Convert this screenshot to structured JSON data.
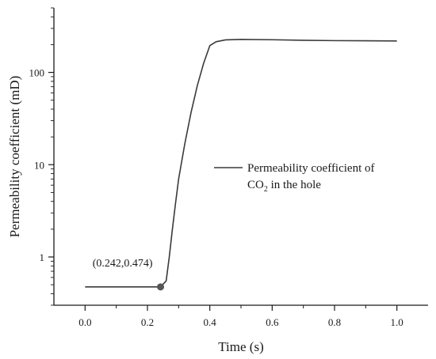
{
  "chart_data": {
    "type": "line",
    "xlabel": "Time (s)",
    "ylabel": "Permeability coefficient (mD)",
    "yscale": "log",
    "xlim": [
      -0.1,
      1.1
    ],
    "ylim": [
      0.3,
      500
    ],
    "x_ticks": [
      0.0,
      0.2,
      0.4,
      0.6,
      0.8,
      1.0
    ],
    "x_tick_labels": [
      "0.0",
      "0.2",
      "0.4",
      "0.6",
      "0.8",
      "1.0"
    ],
    "x_minor_ticks": [
      0.1,
      0.3,
      0.5,
      0.7,
      0.9
    ],
    "y_ticks": [
      1,
      10,
      100
    ],
    "y_tick_labels": [
      "1",
      "10",
      "100"
    ],
    "grid": false,
    "legend_position": "center-right",
    "series": [
      {
        "name_main": "Permeability coefficient of",
        "name_line2_pre": "CO",
        "name_line2_sub": "2",
        "name_line2_post": " in the hole",
        "color": "#3a3a3a",
        "x": [
          0.0,
          0.1,
          0.2,
          0.242,
          0.26,
          0.27,
          0.28,
          0.29,
          0.3,
          0.32,
          0.34,
          0.36,
          0.38,
          0.4,
          0.42,
          0.45,
          0.5,
          0.6,
          0.7,
          0.8,
          0.9,
          1.0
        ],
        "y": [
          0.474,
          0.474,
          0.474,
          0.474,
          0.55,
          1.0,
          2.0,
          3.8,
          7.0,
          17.0,
          37.0,
          72.0,
          125.0,
          195.0,
          215.0,
          225.0,
          228.0,
          226.0,
          223.0,
          221.0,
          220.0,
          219.0
        ]
      }
    ],
    "annotation": {
      "text": "(0.242,0.474)",
      "x": 0.242,
      "y": 0.474
    }
  }
}
